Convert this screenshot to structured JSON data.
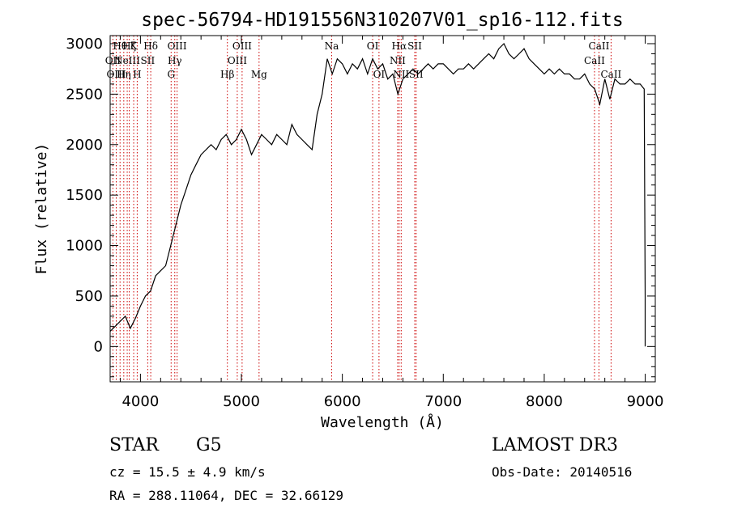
{
  "chart_data": {
    "type": "line",
    "title": "spec-56794-HD191556N310207V01_sp16-112.fits",
    "xlabel": "Wavelength (Å)",
    "ylabel": "Flux (relative)",
    "xlim": [
      3700,
      9100
    ],
    "ylim": [
      -350,
      3080
    ],
    "xticks": [
      4000,
      5000,
      6000,
      7000,
      8000,
      9000
    ],
    "yticks": [
      0,
      500,
      1000,
      1500,
      2000,
      2500,
      3000
    ],
    "grid": false,
    "series": [
      {
        "x": [
          3700,
          3750,
          3800,
          3850,
          3900,
          3950,
          4000,
          4050,
          4100,
          4150,
          4200,
          4250,
          4300,
          4350,
          4400,
          4450,
          4500,
          4550,
          4600,
          4650,
          4700,
          4750,
          4800,
          4850,
          4900,
          4950,
          5000,
          5050,
          5100,
          5150,
          5200,
          5250,
          5300,
          5350,
          5400,
          5450,
          5500,
          5550,
          5600,
          5650,
          5700,
          5750,
          5800,
          5850,
          5900,
          5950,
          6000,
          6050,
          6100,
          6150,
          6200,
          6250,
          6300,
          6350,
          6400,
          6450,
          6500,
          6550,
          6600,
          6650,
          6700,
          6750,
          6800,
          6850,
          6900,
          6950,
          7000,
          7050,
          7100,
          7150,
          7200,
          7250,
          7300,
          7350,
          7400,
          7450,
          7500,
          7550,
          7600,
          7650,
          7700,
          7750,
          7800,
          7850,
          7900,
          7950,
          8000,
          8050,
          8100,
          8150,
          8200,
          8250,
          8300,
          8350,
          8400,
          8450,
          8500,
          8550,
          8600,
          8650,
          8700,
          8750,
          8800,
          8850,
          8900,
          8950,
          8990,
          9000,
          9000
        ],
        "y": [
          150,
          200,
          250,
          300,
          180,
          280,
          400,
          500,
          550,
          700,
          750,
          800,
          1000,
          1200,
          1400,
          1550,
          1700,
          1800,
          1900,
          1950,
          2000,
          1950,
          2050,
          2100,
          2000,
          2050,
          2150,
          2050,
          1900,
          2000,
          2100,
          2050,
          2000,
          2100,
          2050,
          2000,
          2200,
          2100,
          2050,
          2000,
          1950,
          2300,
          2500,
          2850,
          2700,
          2850,
          2800,
          2700,
          2800,
          2750,
          2850,
          2700,
          2850,
          2750,
          2800,
          2650,
          2700,
          2500,
          2650,
          2700,
          2750,
          2700,
          2750,
          2800,
          2750,
          2800,
          2800,
          2750,
          2700,
          2750,
          2750,
          2800,
          2750,
          2800,
          2850,
          2900,
          2850,
          2950,
          3000,
          2900,
          2850,
          2900,
          2950,
          2850,
          2800,
          2750,
          2700,
          2750,
          2700,
          2750,
          2700,
          2700,
          2650,
          2650,
          2700,
          2600,
          2550,
          2400,
          2650,
          2450,
          2650,
          2600,
          2600,
          2650,
          2600,
          2600,
          2550,
          500,
          0
        ]
      }
    ],
    "line_markers": [
      {
        "wave": 3727,
        "label": "OII",
        "row": 1
      },
      {
        "wave": 3760,
        "label": "OIII",
        "row": 2
      },
      {
        "wave": 3798,
        "label": "Hθ",
        "row": 0
      },
      {
        "wave": 3835,
        "label": "Hη",
        "row": 2
      },
      {
        "wave": 3869,
        "label": "NeIII",
        "row": 1
      },
      {
        "wave": 3889,
        "label": "Hζ",
        "row": 0
      },
      {
        "wave": 3933,
        "label": "K",
        "row": 0
      },
      {
        "wave": 3968,
        "label": "H",
        "row": 2
      },
      {
        "wave": 4072,
        "label": "SII",
        "row": 1
      },
      {
        "wave": 4102,
        "label": "Hδ",
        "row": 0
      },
      {
        "wave": 4304,
        "label": "G",
        "row": 2
      },
      {
        "wave": 4340,
        "label": "Hγ",
        "row": 1
      },
      {
        "wave": 4363,
        "label": "OIII",
        "row": 0
      },
      {
        "wave": 4861,
        "label": "Hβ",
        "row": 2
      },
      {
        "wave": 4959,
        "label": "OIII",
        "row": 1
      },
      {
        "wave": 5007,
        "label": "OIII",
        "row": 0
      },
      {
        "wave": 5175,
        "label": "Mg",
        "row": 2
      },
      {
        "wave": 5894,
        "label": "Na",
        "row": 0
      },
      {
        "wave": 6300,
        "label": "OI",
        "row": 0
      },
      {
        "wave": 6363,
        "label": "OI",
        "row": 2
      },
      {
        "wave": 6548,
        "label": "NII",
        "row": 1
      },
      {
        "wave": 6563,
        "label": "Hα",
        "row": 0
      },
      {
        "wave": 6583,
        "label": "NII",
        "row": 2
      },
      {
        "wave": 6717,
        "label": "SII",
        "row": 0
      },
      {
        "wave": 6731,
        "label": "SII",
        "row": 2
      },
      {
        "wave": 8498,
        "label": "CaII",
        "row": 1
      },
      {
        "wave": 8542,
        "label": "CaII",
        "row": 0
      },
      {
        "wave": 8662,
        "label": "CaII",
        "row": 2
      }
    ],
    "colors": {
      "spectrum": "#000000",
      "markers": "#cc0000",
      "axes": "#000000"
    }
  },
  "info": {
    "object_class": "STAR",
    "subclass": "G5",
    "survey": "LAMOST DR3",
    "redshift": "cz = 15.5 ± 4.9 km/s",
    "obs_date": "Obs-Date: 20140516",
    "coords": "RA = 288.11064, DEC =  32.66129"
  }
}
